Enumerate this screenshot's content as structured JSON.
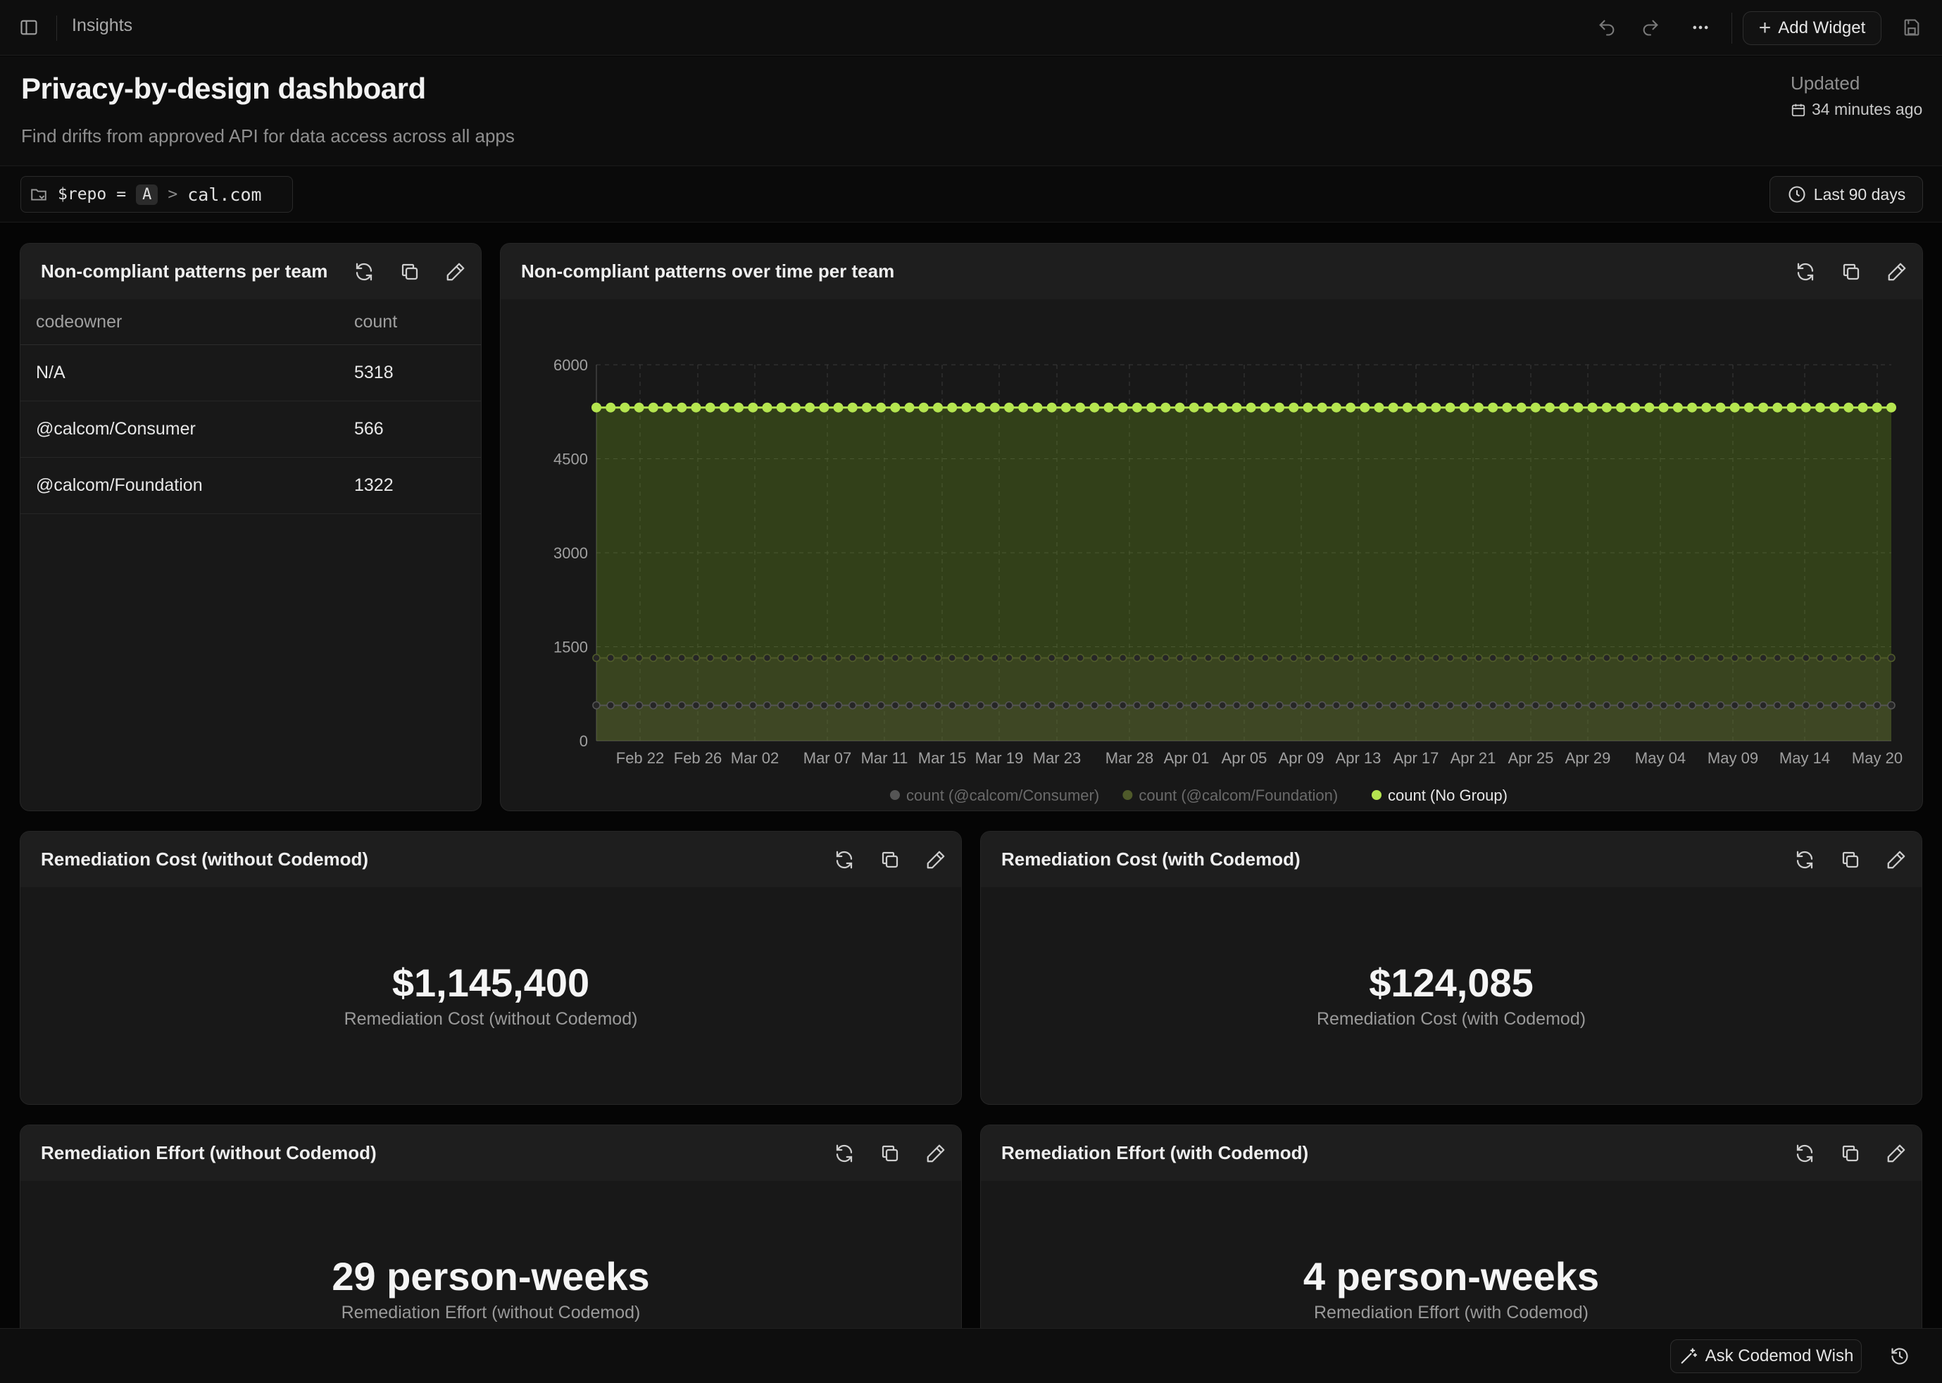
{
  "topbar": {
    "breadcrumb": "Insights",
    "add_widget_label": "Add Widget"
  },
  "header": {
    "title": "Privacy-by-design dashboard",
    "subtitle": "Find drifts from approved API for data access across all apps",
    "updated_label": "Updated",
    "updated_time": "34 minutes ago"
  },
  "filters": {
    "repo_var": "$repo",
    "repo_op": "=",
    "repo_badge": "A",
    "repo_sep": ">",
    "repo_value": "cal.com",
    "time_range": "Last 90 days"
  },
  "table_widget": {
    "title": "Non-compliant patterns per team",
    "columns": [
      "codeowner",
      "count"
    ],
    "rows": [
      {
        "codeowner": "N/A",
        "count": "5318"
      },
      {
        "codeowner": "@calcom/Consumer",
        "count": "566"
      },
      {
        "codeowner": "@calcom/Foundation",
        "count": "1322"
      }
    ]
  },
  "chart_widget": {
    "title": "Non-compliant patterns over time per team"
  },
  "chart_data": {
    "type": "line",
    "title": "",
    "xlabel": "",
    "ylabel": "",
    "ylim": [
      0,
      6000
    ],
    "yticks": [
      "0",
      "1500",
      "3000",
      "4500",
      "6000"
    ],
    "xticks": [
      "Feb 22",
      "Feb 26",
      "Mar 02",
      "Mar 07",
      "Mar 11",
      "Mar 15",
      "Mar 19",
      "Mar 23",
      "Mar 28",
      "Apr 01",
      "Apr 05",
      "Apr 09",
      "Apr 13",
      "Apr 17",
      "Apr 21",
      "Apr 25",
      "Apr 29",
      "May 04",
      "May 09",
      "May 14",
      "May 20"
    ],
    "x_start": "Feb 19",
    "x_end": "May 20",
    "grid": true,
    "legend_position": "bottom",
    "series": [
      {
        "name": "count (@calcom/Consumer)",
        "constant_value": 566,
        "color": "#555555",
        "active": false
      },
      {
        "name": "count (@calcom/Foundation)",
        "constant_value": 1322,
        "color": "#4f5a2a",
        "active": false
      },
      {
        "name": "count (No Group)",
        "constant_value": 5318,
        "color": "#b5e550",
        "active": true
      }
    ]
  },
  "cost_without": {
    "title": "Remediation Cost (without Codemod)",
    "value": "$1,145,400",
    "label": "Remediation Cost (without Codemod)"
  },
  "cost_with": {
    "title": "Remediation Cost (with Codemod)",
    "value": "$124,085",
    "label": "Remediation Cost (with Codemod)"
  },
  "effort_without": {
    "title": "Remediation Effort (without Codemod)",
    "value": "29 person-weeks",
    "label": "Remediation Effort (without Codemod)"
  },
  "effort_with": {
    "title": "Remediation Effort (with Codemod)",
    "value": "4 person-weeks",
    "label": "Remediation Effort (with Codemod)"
  },
  "bottombar": {
    "ask_label": "Ask Codemod Wish"
  },
  "colors": {
    "accent": "#b5e550",
    "background": "#050505",
    "card": "#181818"
  }
}
